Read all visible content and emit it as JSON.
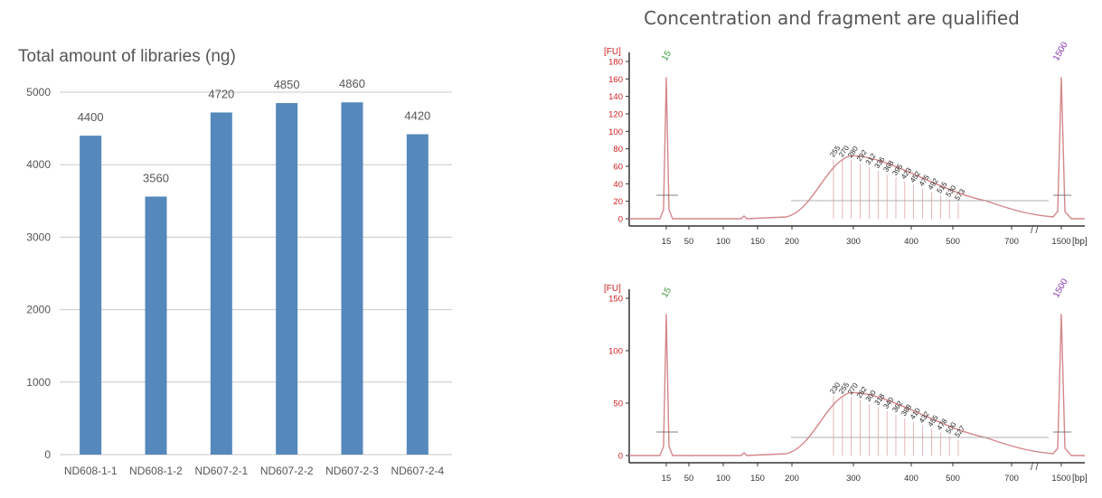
{
  "colors": {
    "bar": "#5588bb",
    "grid": "#c8c8c8",
    "trace_line": "#d4878a",
    "axis_text_red": "#d02020",
    "peak_green": "#3a9a3a",
    "peak_purple": "#8a3ab0"
  },
  "right_title": "Concentration and fragment are qualified",
  "chart_data": [
    {
      "type": "bar",
      "title": "Total amount of libraries (ng)",
      "categories": [
        "ND608-1-1",
        "ND608-1-2",
        "ND607-2-1",
        "ND607-2-2",
        "ND607-2-3",
        "ND607-2-4"
      ],
      "values": [
        4400,
        3560,
        4720,
        4850,
        4860,
        4420
      ],
      "ylim": [
        0,
        5000
      ],
      "yticks": [
        "0",
        "1000",
        "2000",
        "3000",
        "4000",
        "5000"
      ],
      "grid": true,
      "data_labels": true
    },
    {
      "type": "line",
      "ylabel": "[FU]",
      "xlabel": "[bp]",
      "yticks": [
        "0",
        "20",
        "40",
        "60",
        "80",
        "100",
        "120",
        "140",
        "160",
        "180"
      ],
      "xticks": [
        "15",
        "50",
        "100",
        "150",
        "200",
        "300",
        "400",
        "500",
        "700",
        "1500"
      ],
      "peak_labels": [
        "15",
        "1500"
      ],
      "fragment_labels": [
        "255",
        "270",
        "280",
        "292",
        "312",
        "336",
        "368",
        "395",
        "423",
        "452",
        "475",
        "492",
        "515",
        "530",
        "573"
      ]
    },
    {
      "type": "line",
      "ylabel": "[FU]",
      "xlabel": "[bp]",
      "yticks": [
        "0",
        "50",
        "100",
        "150"
      ],
      "xticks": [
        "15",
        "50",
        "100",
        "150",
        "200",
        "300",
        "400",
        "500",
        "700",
        "1500"
      ],
      "peak_labels": [
        "15",
        "1500"
      ],
      "fragment_labels": [
        "230",
        "255",
        "270",
        "282",
        "300",
        "318",
        "340",
        "362",
        "388",
        "410",
        "432",
        "455",
        "478",
        "500",
        "527"
      ]
    }
  ]
}
